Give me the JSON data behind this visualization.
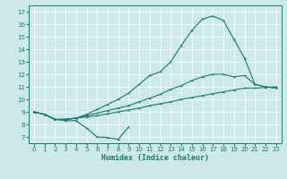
{
  "xlabel": "Humidex (Indice chaleur)",
  "bg_color": "#cce8e8",
  "line_color": "#1a7a6e",
  "grid_color": "#ffffff",
  "xlim": [
    -0.5,
    23.5
  ],
  "ylim": [
    6.5,
    17.5
  ],
  "xticks": [
    0,
    1,
    2,
    3,
    4,
    5,
    6,
    7,
    8,
    9,
    10,
    11,
    12,
    13,
    14,
    15,
    16,
    17,
    18,
    19,
    20,
    21,
    22,
    23
  ],
  "yticks": [
    7,
    8,
    9,
    10,
    11,
    12,
    13,
    14,
    15,
    16,
    17
  ],
  "line_dip_x": [
    0,
    1,
    2,
    3,
    4,
    5,
    6,
    7,
    8,
    9
  ],
  "line_dip_y": [
    9.0,
    8.8,
    8.4,
    8.3,
    8.3,
    7.7,
    7.0,
    6.95,
    6.8,
    7.8
  ],
  "line_low_x": [
    0,
    1,
    2,
    3,
    4,
    5,
    6,
    7,
    8,
    9,
    10,
    11,
    12,
    13,
    14,
    15,
    16,
    17,
    18,
    19,
    20,
    21,
    22,
    23
  ],
  "line_low_y": [
    9.0,
    8.8,
    8.4,
    8.4,
    8.5,
    8.6,
    8.7,
    8.85,
    9.0,
    9.15,
    9.3,
    9.5,
    9.65,
    9.8,
    10.0,
    10.15,
    10.3,
    10.45,
    10.6,
    10.75,
    10.9,
    10.9,
    10.95,
    11.0
  ],
  "line_mid_x": [
    0,
    1,
    2,
    3,
    4,
    5,
    6,
    7,
    8,
    9,
    10,
    11,
    12,
    13,
    14,
    15,
    16,
    17,
    18,
    19,
    20,
    21,
    22,
    23
  ],
  "line_mid_y": [
    9.0,
    8.8,
    8.4,
    8.4,
    8.5,
    8.7,
    8.9,
    9.1,
    9.3,
    9.5,
    9.8,
    10.1,
    10.4,
    10.8,
    11.1,
    11.5,
    11.8,
    12.0,
    12.0,
    11.8,
    11.9,
    11.2,
    11.0,
    10.9
  ],
  "line_main_x": [
    0,
    1,
    2,
    3,
    4,
    5,
    6,
    7,
    8,
    9,
    10,
    11,
    12,
    13,
    14,
    15,
    16,
    17,
    18,
    19,
    20,
    21,
    22,
    23
  ],
  "line_main_y": [
    9.0,
    8.8,
    8.4,
    8.4,
    8.5,
    8.8,
    9.2,
    9.6,
    10.0,
    10.5,
    11.2,
    11.9,
    12.2,
    13.0,
    14.3,
    15.5,
    16.4,
    16.65,
    16.3,
    14.8,
    13.3,
    11.2,
    11.0,
    10.9
  ]
}
